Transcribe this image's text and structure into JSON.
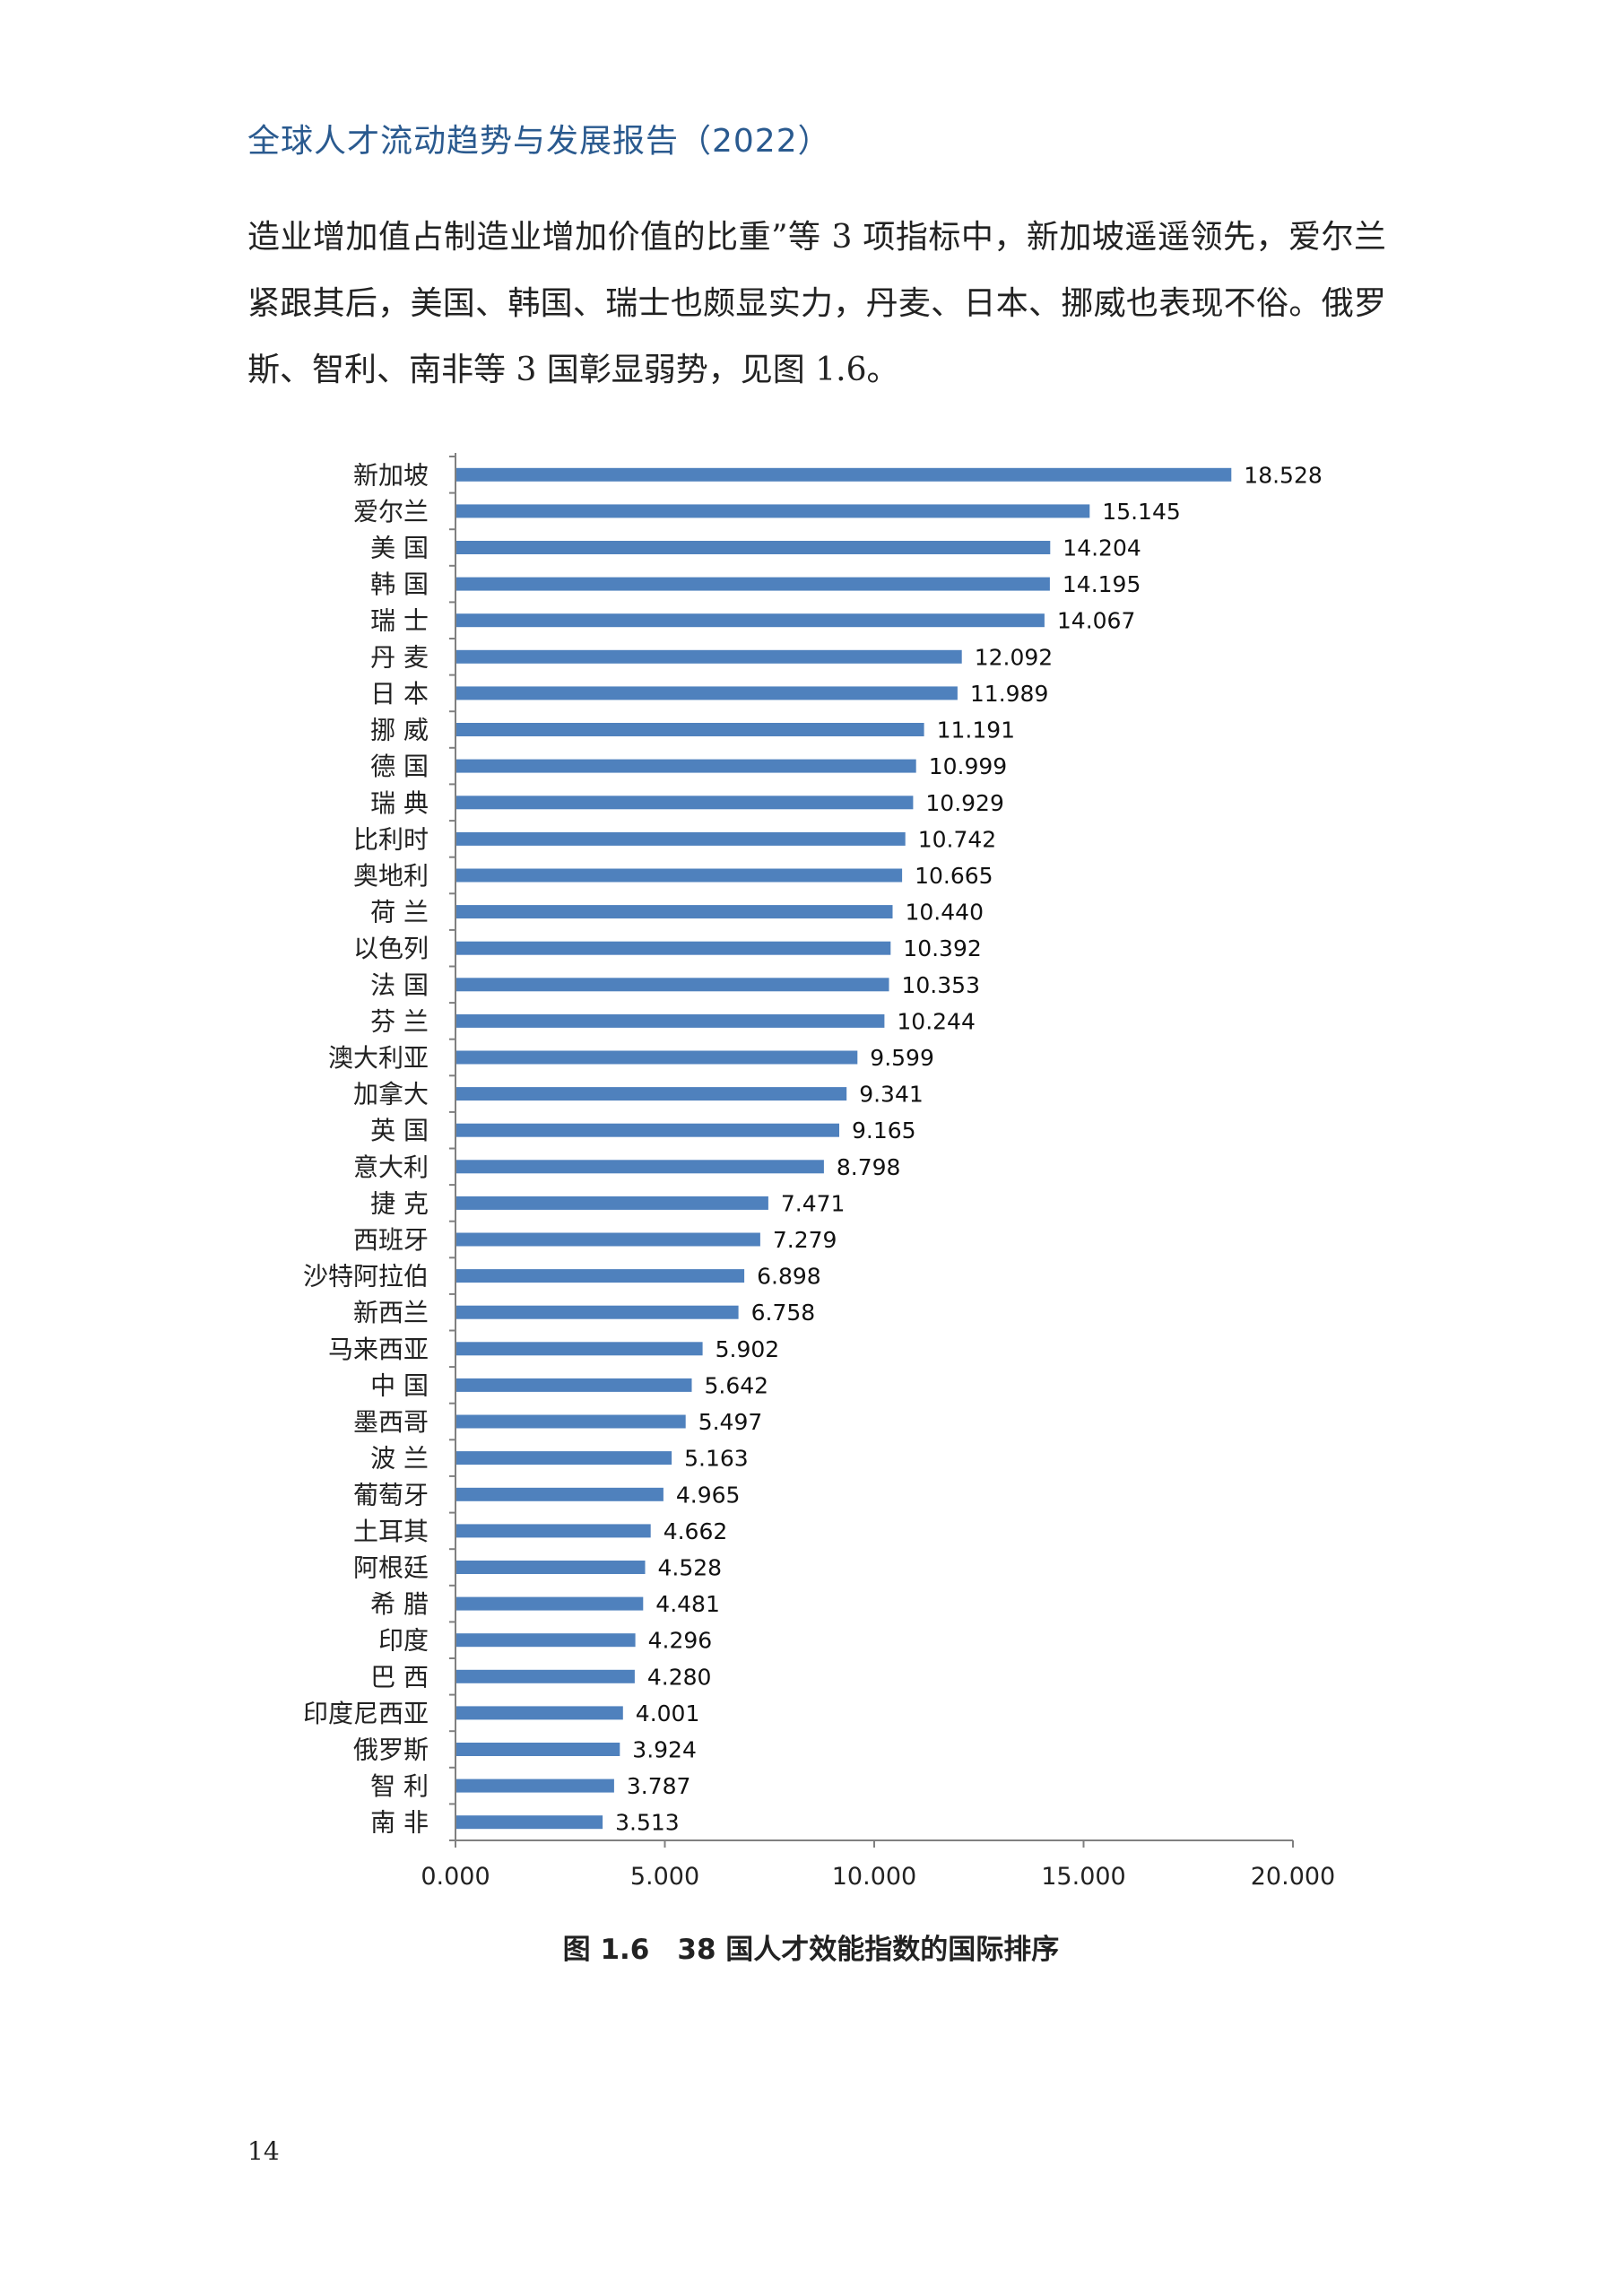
{
  "header": {
    "title": "全球人才流动趋势与发展报告（2022）"
  },
  "body": {
    "paragraph": "造业增加值占制造业增加价值的比重”等 3 项指标中，新加坡遥遥领先，爱尔兰紧跟其后，美国、韩国、瑞士也颇显实力，丹麦、日本、挪威也表现不俗。俄罗斯、智利、南非等 3 国彰显弱势，见图 1.6。"
  },
  "chart_data": {
    "type": "bar",
    "orientation": "horizontal",
    "categories": [
      "新加坡",
      "爱尔兰",
      "美 国",
      "韩 国",
      "瑞 士",
      "丹 麦",
      "日 本",
      "挪 威",
      "德 国",
      "瑞 典",
      "比利时",
      "奥地利",
      "荷 兰",
      "以色列",
      "法 国",
      "芬 兰",
      "澳大利亚",
      "加拿大",
      "英 国",
      "意大利",
      "捷 克",
      "西班牙",
      "沙特阿拉伯",
      "新西兰",
      "马来西亚",
      "中 国",
      "墨西哥",
      "波 兰",
      "葡萄牙",
      "土耳其",
      "阿根廷",
      "希 腊",
      "印度",
      "巴 西",
      "印度尼西亚",
      "俄罗斯",
      "智 利",
      "南 非"
    ],
    "values": [
      18.528,
      15.145,
      14.204,
      14.195,
      14.067,
      12.092,
      11.989,
      11.191,
      10.999,
      10.929,
      10.742,
      10.665,
      10.44,
      10.392,
      10.353,
      10.244,
      9.599,
      9.341,
      9.165,
      8.798,
      7.471,
      7.279,
      6.898,
      6.758,
      5.902,
      5.642,
      5.497,
      5.163,
      4.965,
      4.662,
      4.528,
      4.481,
      4.296,
      4.28,
      4.001,
      3.924,
      3.787,
      3.513
    ],
    "value_labels": [
      "18.528",
      "15.145",
      "14.204",
      "14.195",
      "14.067",
      "12.092",
      "11.989",
      "11.191",
      "10.999",
      "10.929",
      "10.742",
      "10.665",
      "10.440",
      "10.392",
      "10.353",
      "10.244",
      "9.599",
      "9.341",
      "9.165",
      "8.798",
      "7.471",
      "7.279",
      "6.898",
      "6.758",
      "5.902",
      "5.642",
      "5.497",
      "5.163",
      "4.965",
      "4.662",
      "4.528",
      "4.481",
      "4.296",
      "4.280",
      "4.001",
      "3.924",
      "3.787",
      "3.513"
    ],
    "xlim": [
      0,
      20
    ],
    "xticks": [
      0,
      5,
      10,
      15,
      20
    ],
    "xtick_labels": [
      "0.000",
      "5.000",
      "10.000",
      "15.000",
      "20.000"
    ],
    "bar_color": "#4f81bd",
    "grid": false,
    "legend": "none"
  },
  "caption": {
    "text": "图 1.6　38 国人才效能指数的国际排序"
  },
  "page": {
    "number": "14"
  }
}
